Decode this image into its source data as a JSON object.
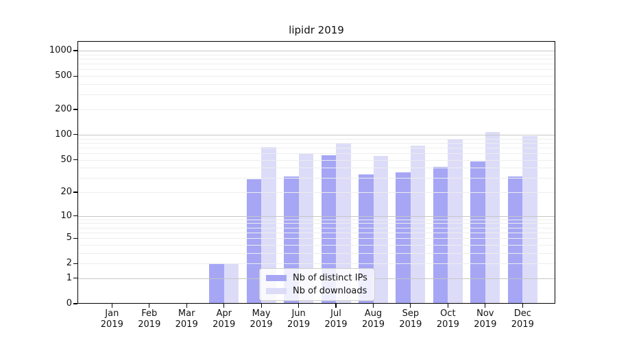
{
  "title": "lipidr 2019",
  "chart_data": {
    "type": "bar",
    "title": "lipidr 2019",
    "categories": [
      "Jan",
      "Feb",
      "Mar",
      "Apr",
      "May",
      "Jun",
      "Jul",
      "Aug",
      "Sep",
      "Oct",
      "Nov",
      "Dec"
    ],
    "category_year": "2019",
    "series": [
      {
        "name": "Nb of distinct IPs",
        "color": "#a6a6f5",
        "values": [
          0,
          0,
          0,
          2,
          29,
          31,
          57,
          33,
          35,
          41,
          48,
          31
        ]
      },
      {
        "name": "Nb of downloads",
        "color": "#dcdcf9",
        "values": [
          0,
          0,
          0,
          2,
          71,
          59,
          79,
          55,
          74,
          90,
          107,
          96
        ]
      }
    ],
    "yticks": [
      0,
      1,
      2,
      5,
      10,
      20,
      50,
      100,
      200,
      500,
      1000
    ],
    "yscale": "log1p",
    "ylim": [
      0,
      1330
    ],
    "grid": true,
    "grid_major_color": "#c6c6c6",
    "grid_minor_color": "#ededed",
    "legend_position": "lower center",
    "xlabel": "",
    "ylabel": ""
  }
}
